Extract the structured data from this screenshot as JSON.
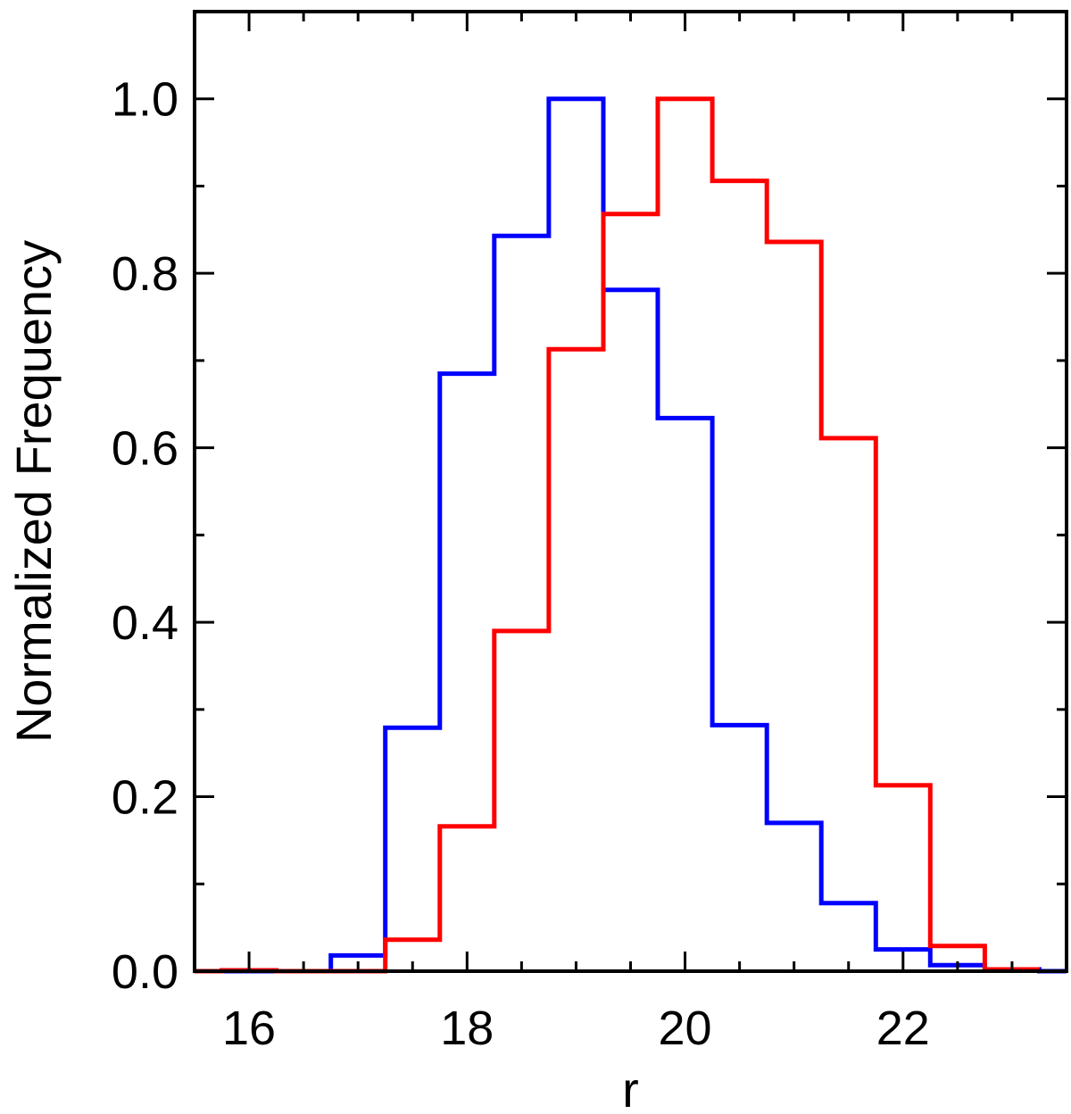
{
  "chart_data": {
    "type": "histogram",
    "xlabel": "r",
    "ylabel": "Normalized Frequency",
    "xlim": [
      15.5,
      23.5
    ],
    "ylim": [
      0.0,
      1.1
    ],
    "x_ticks": [
      16,
      18,
      20,
      22
    ],
    "x_tick_labels": [
      "16",
      "18",
      "20",
      "22"
    ],
    "y_ticks": [
      0.0,
      0.2,
      0.4,
      0.6,
      0.8,
      1.0
    ],
    "y_tick_labels": [
      "0.0",
      "0.2",
      "0.4",
      "0.6",
      "0.8",
      "1.0"
    ],
    "x_minor_step": 0.5,
    "y_minor_step": 0.1,
    "grid": false,
    "legend": "none",
    "series": [
      {
        "color": "#0000ff",
        "bin_edges": [
          15.75,
          16.25,
          16.75,
          17.25,
          17.75,
          18.25,
          18.75,
          19.25,
          19.75,
          20.25,
          20.75,
          21.25,
          21.75,
          22.25,
          22.75,
          23.25,
          23.5
        ],
        "values": [
          0.0,
          0.0,
          0.018,
          0.279,
          0.685,
          0.843,
          1.0,
          0.781,
          0.634,
          0.282,
          0.17,
          0.078,
          0.025,
          0.007,
          0.002,
          0.0
        ]
      },
      {
        "color": "#ff0000",
        "bin_edges": [
          15.5,
          15.75,
          16.25,
          16.75,
          17.25,
          17.75,
          18.25,
          18.75,
          19.25,
          19.75,
          20.25,
          20.75,
          21.25,
          21.75,
          22.25,
          22.75,
          23.25
        ],
        "values": [
          0.0,
          0.001,
          0.0,
          0.0,
          0.036,
          0.166,
          0.39,
          0.713,
          0.868,
          1.0,
          0.906,
          0.836,
          0.611,
          0.213,
          0.029,
          0.002
        ]
      }
    ]
  }
}
